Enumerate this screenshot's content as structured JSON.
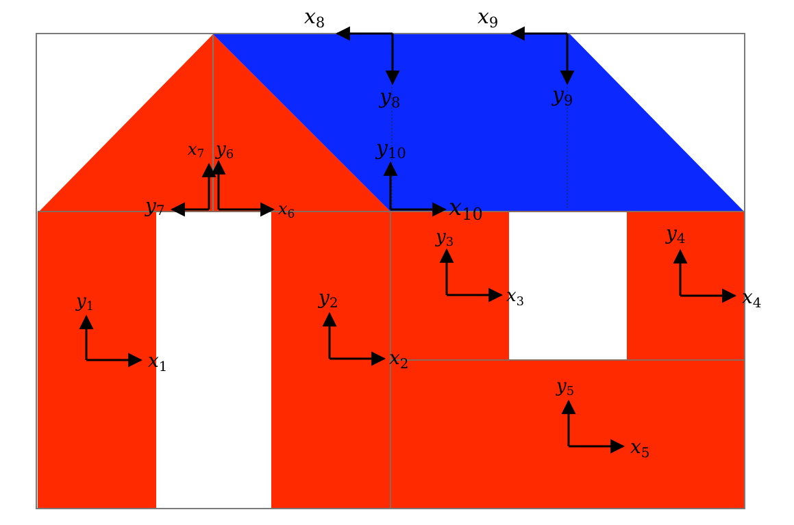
{
  "colors": {
    "red": "#ff2a00",
    "blue": "#0a28ff",
    "white": "#ffffff",
    "outline": "#7a7a7a",
    "arrow": "#000000"
  },
  "frames": [
    {
      "id": "f1",
      "x": "x",
      "xs": "1",
      "y": "y",
      "ys": "1"
    },
    {
      "id": "f2",
      "x": "x",
      "xs": "2",
      "y": "y",
      "ys": "2"
    },
    {
      "id": "f3",
      "x": "x",
      "xs": "3",
      "y": "y",
      "ys": "3"
    },
    {
      "id": "f4",
      "x": "x",
      "xs": "4",
      "y": "y",
      "ys": "4"
    },
    {
      "id": "f5",
      "x": "x",
      "xs": "5",
      "y": "y",
      "ys": "5"
    },
    {
      "id": "f6",
      "x": "x",
      "xs": "6",
      "y": "y",
      "ys": "6"
    },
    {
      "id": "f7",
      "x": "x",
      "xs": "7",
      "y": "y",
      "ys": "7"
    },
    {
      "id": "f8",
      "x": "x",
      "xs": "8",
      "y": "y",
      "ys": "8"
    },
    {
      "id": "f9",
      "x": "x",
      "xs": "9",
      "y": "y",
      "ys": "9"
    },
    {
      "id": "f10",
      "x": "x",
      "xs": "10",
      "y": "y",
      "ys": "10"
    }
  ]
}
